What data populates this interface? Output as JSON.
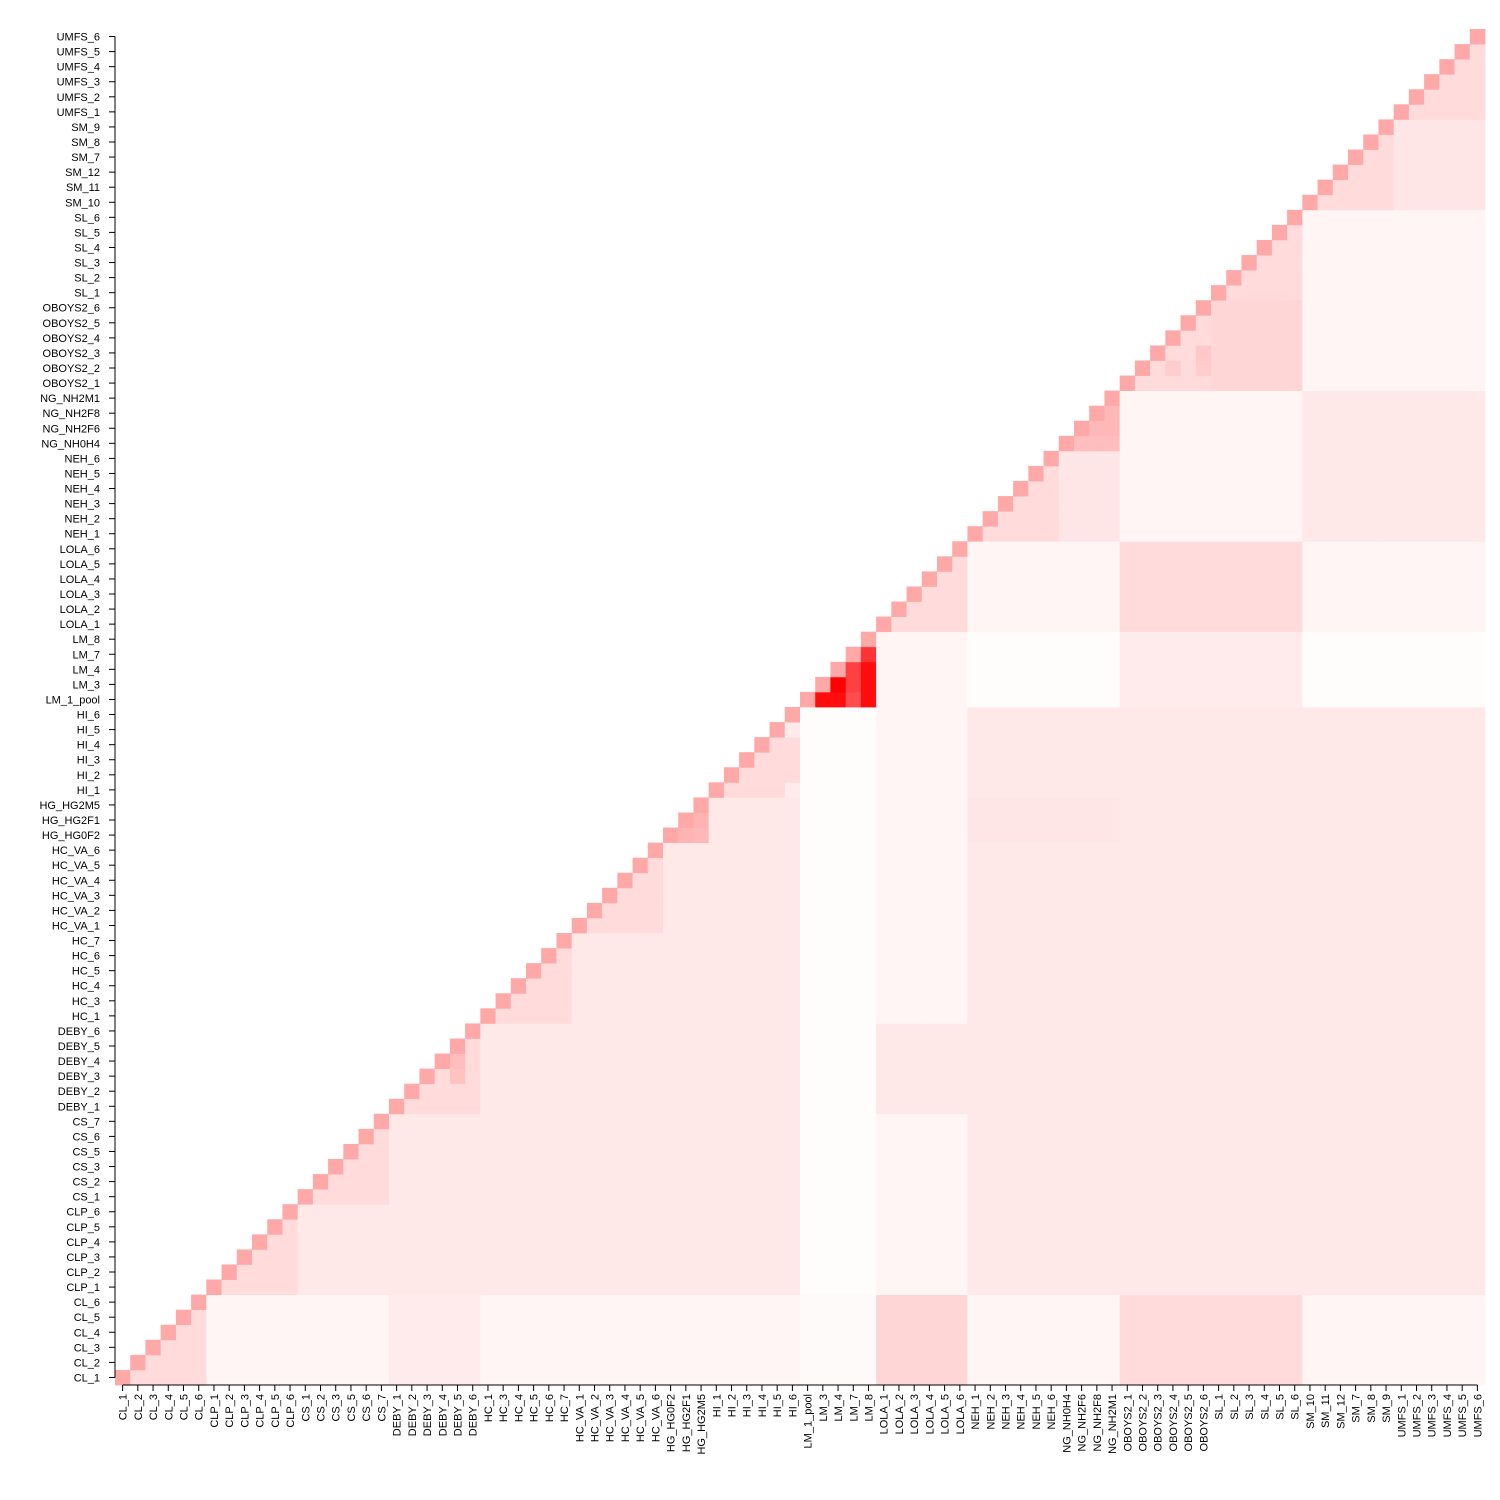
{
  "chart_data": {
    "type": "heatmap",
    "title": "",
    "xlabel": "",
    "ylabel": "",
    "layout": "upper-triangle",
    "labels": [
      "CL_1",
      "CL_2",
      "CL_3",
      "CL_4",
      "CL_5",
      "CL_6",
      "CLP_1",
      "CLP_2",
      "CLP_3",
      "CLP_4",
      "CLP_5",
      "CLP_6",
      "CS_1",
      "CS_2",
      "CS_3",
      "CS_5",
      "CS_6",
      "CS_7",
      "DEBY_1",
      "DEBY_2",
      "DEBY_3",
      "DEBY_4",
      "DEBY_5",
      "DEBY_6",
      "HC_1",
      "HC_3",
      "HC_4",
      "HC_5",
      "HC_6",
      "HC_7",
      "HC_VA_1",
      "HC_VA_2",
      "HC_VA_3",
      "HC_VA_4",
      "HC_VA_5",
      "HC_VA_6",
      "HG_HG0F2",
      "HG_HG2F1",
      "HG_HG2M5",
      "HI_1",
      "HI_2",
      "HI_3",
      "HI_4",
      "HI_5",
      "HI_6",
      "LM_1_pool",
      "LM_3",
      "LM_4",
      "LM_7",
      "LM_8",
      "LOLA_1",
      "LOLA_2",
      "LOLA_3",
      "LOLA_4",
      "LOLA_5",
      "LOLA_6",
      "NEH_1",
      "NEH_2",
      "NEH_3",
      "NEH_4",
      "NEH_5",
      "NEH_6",
      "NG_NH0H4",
      "NG_NH2F6",
      "NG_NH2F8",
      "NG_NH2M1",
      "OBOYS2_1",
      "OBOYS2_2",
      "OBOYS2_3",
      "OBOYS2_4",
      "OBOYS2_5",
      "OBOYS2_6",
      "SL_1",
      "SL_2",
      "SL_3",
      "SL_4",
      "SL_5",
      "SL_6",
      "SM_10",
      "SM_11",
      "SM_12",
      "SM_7",
      "SM_8",
      "SM_9",
      "UMFS_1",
      "UMFS_2",
      "UMFS_3",
      "UMFS_4",
      "UMFS_5",
      "UMFS_6"
    ],
    "groups": [
      "CL",
      "CLP",
      "CS",
      "DEBY",
      "HC",
      "HC_VA",
      "HG",
      "HI",
      "LM",
      "LOLA",
      "NEH",
      "NG",
      "OBOYS2",
      "SL",
      "SM",
      "UMFS"
    ],
    "group_of": [
      0,
      0,
      0,
      0,
      0,
      0,
      1,
      1,
      1,
      1,
      1,
      1,
      2,
      2,
      2,
      2,
      2,
      2,
      3,
      3,
      3,
      3,
      3,
      3,
      4,
      4,
      4,
      4,
      4,
      4,
      5,
      5,
      5,
      5,
      5,
      5,
      6,
      6,
      6,
      7,
      7,
      7,
      7,
      7,
      7,
      8,
      8,
      8,
      8,
      8,
      9,
      9,
      9,
      9,
      9,
      9,
      10,
      10,
      10,
      10,
      10,
      10,
      11,
      11,
      11,
      11,
      12,
      12,
      12,
      12,
      12,
      12,
      13,
      13,
      13,
      13,
      13,
      13,
      14,
      14,
      14,
      14,
      14,
      14,
      15,
      15,
      15,
      15,
      15,
      15
    ],
    "diagonal_value": 0.34,
    "within_group_value": 0.14,
    "group_pair_values": [
      [
        0,
        1,
        0.04
      ],
      [
        0,
        2,
        0.04
      ],
      [
        0,
        3,
        0.08
      ],
      [
        0,
        4,
        0.04
      ],
      [
        0,
        5,
        0.04
      ],
      [
        0,
        6,
        0.04
      ],
      [
        0,
        7,
        0.04
      ],
      [
        0,
        8,
        0.02
      ],
      [
        0,
        9,
        0.16
      ],
      [
        0,
        10,
        0.04
      ],
      [
        0,
        11,
        0.04
      ],
      [
        0,
        12,
        0.14
      ],
      [
        0,
        13,
        0.14
      ],
      [
        0,
        14,
        0.04
      ],
      [
        0,
        15,
        0.04
      ],
      [
        1,
        2,
        0.09
      ],
      [
        1,
        3,
        0.09
      ],
      [
        1,
        4,
        0.09
      ],
      [
        1,
        5,
        0.09
      ],
      [
        1,
        6,
        0.09
      ],
      [
        1,
        7,
        0.09
      ],
      [
        1,
        8,
        0.01
      ],
      [
        1,
        9,
        0.04
      ],
      [
        1,
        10,
        0.09
      ],
      [
        1,
        11,
        0.09
      ],
      [
        1,
        12,
        0.09
      ],
      [
        1,
        13,
        0.09
      ],
      [
        1,
        14,
        0.09
      ],
      [
        1,
        15,
        0.09
      ],
      [
        2,
        3,
        0.09
      ],
      [
        2,
        4,
        0.09
      ],
      [
        2,
        5,
        0.09
      ],
      [
        2,
        6,
        0.09
      ],
      [
        2,
        7,
        0.09
      ],
      [
        2,
        8,
        0.01
      ],
      [
        2,
        9,
        0.04
      ],
      [
        2,
        10,
        0.09
      ],
      [
        2,
        11,
        0.09
      ],
      [
        2,
        12,
        0.09
      ],
      [
        2,
        13,
        0.09
      ],
      [
        2,
        14,
        0.09
      ],
      [
        2,
        15,
        0.09
      ],
      [
        3,
        4,
        0.09
      ],
      [
        3,
        5,
        0.09
      ],
      [
        3,
        6,
        0.09
      ],
      [
        3,
        7,
        0.09
      ],
      [
        3,
        8,
        0.01
      ],
      [
        3,
        9,
        0.09
      ],
      [
        3,
        10,
        0.09
      ],
      [
        3,
        11,
        0.09
      ],
      [
        3,
        12,
        0.09
      ],
      [
        3,
        13,
        0.09
      ],
      [
        3,
        14,
        0.09
      ],
      [
        3,
        15,
        0.09
      ],
      [
        4,
        5,
        0.09
      ],
      [
        4,
        6,
        0.09
      ],
      [
        4,
        7,
        0.09
      ],
      [
        4,
        8,
        0.01
      ],
      [
        4,
        9,
        0.04
      ],
      [
        4,
        10,
        0.09
      ],
      [
        4,
        11,
        0.09
      ],
      [
        4,
        12,
        0.09
      ],
      [
        4,
        13,
        0.09
      ],
      [
        4,
        14,
        0.09
      ],
      [
        4,
        15,
        0.09
      ],
      [
        5,
        6,
        0.09
      ],
      [
        5,
        7,
        0.09
      ],
      [
        5,
        8,
        0.01
      ],
      [
        5,
        9,
        0.04
      ],
      [
        5,
        10,
        0.09
      ],
      [
        5,
        11,
        0.09
      ],
      [
        5,
        12,
        0.09
      ],
      [
        5,
        13,
        0.09
      ],
      [
        5,
        14,
        0.09
      ],
      [
        5,
        15,
        0.09
      ],
      [
        6,
        7,
        0.09
      ],
      [
        6,
        8,
        0.01
      ],
      [
        6,
        9,
        0.04
      ],
      [
        6,
        10,
        0.1
      ],
      [
        6,
        11,
        0.1
      ],
      [
        6,
        12,
        0.09
      ],
      [
        6,
        13,
        0.09
      ],
      [
        6,
        14,
        0.09
      ],
      [
        6,
        15,
        0.09
      ],
      [
        7,
        8,
        0.01
      ],
      [
        7,
        9,
        0.04
      ],
      [
        7,
        10,
        0.09
      ],
      [
        7,
        11,
        0.09
      ],
      [
        7,
        12,
        0.09
      ],
      [
        7,
        13,
        0.09
      ],
      [
        7,
        14,
        0.09
      ],
      [
        7,
        15,
        0.09
      ],
      [
        8,
        9,
        0.04
      ],
      [
        8,
        10,
        0.01
      ],
      [
        8,
        11,
        0.01
      ],
      [
        8,
        12,
        0.08
      ],
      [
        8,
        13,
        0.08
      ],
      [
        8,
        14,
        0.01
      ],
      [
        8,
        15,
        0.01
      ],
      [
        9,
        10,
        0.04
      ],
      [
        9,
        11,
        0.04
      ],
      [
        9,
        12,
        0.14
      ],
      [
        9,
        13,
        0.14
      ],
      [
        9,
        14,
        0.04
      ],
      [
        9,
        15,
        0.04
      ],
      [
        10,
        11,
        0.1
      ],
      [
        10,
        12,
        0.04
      ],
      [
        10,
        13,
        0.04
      ],
      [
        10,
        14,
        0.09
      ],
      [
        10,
        15,
        0.09
      ],
      [
        11,
        12,
        0.04
      ],
      [
        11,
        13,
        0.04
      ],
      [
        11,
        14,
        0.09
      ],
      [
        11,
        15,
        0.09
      ],
      [
        12,
        13,
        0.16
      ],
      [
        12,
        14,
        0.04
      ],
      [
        12,
        15,
        0.04
      ],
      [
        13,
        14,
        0.04
      ],
      [
        13,
        15,
        0.04
      ],
      [
        14,
        15,
        0.1
      ]
    ],
    "within_group_overrides": [
      [
        "LM_1_pool",
        "LM_3",
        0.95
      ],
      [
        "LM_1_pool",
        "LM_4",
        0.95
      ],
      [
        "LM_1_pool",
        "LM_7",
        0.7
      ],
      [
        "LM_1_pool",
        "LM_8",
        0.95
      ],
      [
        "LM_3",
        "LM_4",
        1.0
      ],
      [
        "LM_3",
        "LM_7",
        0.75
      ],
      [
        "LM_3",
        "LM_8",
        0.95
      ],
      [
        "LM_4",
        "LM_7",
        0.75
      ],
      [
        "LM_4",
        "LM_8",
        0.95
      ],
      [
        "LM_7",
        "LM_8",
        0.8
      ],
      [
        "HG_HG0F2",
        "HG_HG2F1",
        0.3
      ],
      [
        "HG_HG0F2",
        "HG_HG2M5",
        0.28
      ],
      [
        "HG_HG2F1",
        "HG_HG2M5",
        0.3
      ],
      [
        "NG_NH0H4",
        "NG_NH2F6",
        0.26
      ],
      [
        "NG_NH0H4",
        "NG_NH2F8",
        0.26
      ],
      [
        "NG_NH0H4",
        "NG_NH2M1",
        0.26
      ],
      [
        "NG_NH2F6",
        "NG_NH2F8",
        0.28
      ],
      [
        "NG_NH2F6",
        "NG_NH2M1",
        0.28
      ],
      [
        "NG_NH2F8",
        "NG_NH2M1",
        0.28
      ],
      [
        "HI_1",
        "HI_6",
        0.08
      ],
      [
        "HI_5",
        "HI_6",
        0.08
      ],
      [
        "OBOYS2_2",
        "OBOYS2_4",
        0.2
      ],
      [
        "OBOYS2_2",
        "OBOYS2_6",
        0.2
      ],
      [
        "OBOYS2_3",
        "OBOYS2_6",
        0.22
      ],
      [
        "DEBY_4",
        "DEBY_5",
        0.26
      ],
      [
        "DEBY_3",
        "DEBY_5",
        0.24
      ]
    ],
    "color_scale": {
      "low": "#ffffff",
      "high": "#ff0000",
      "min": 0,
      "max": 1
    }
  }
}
